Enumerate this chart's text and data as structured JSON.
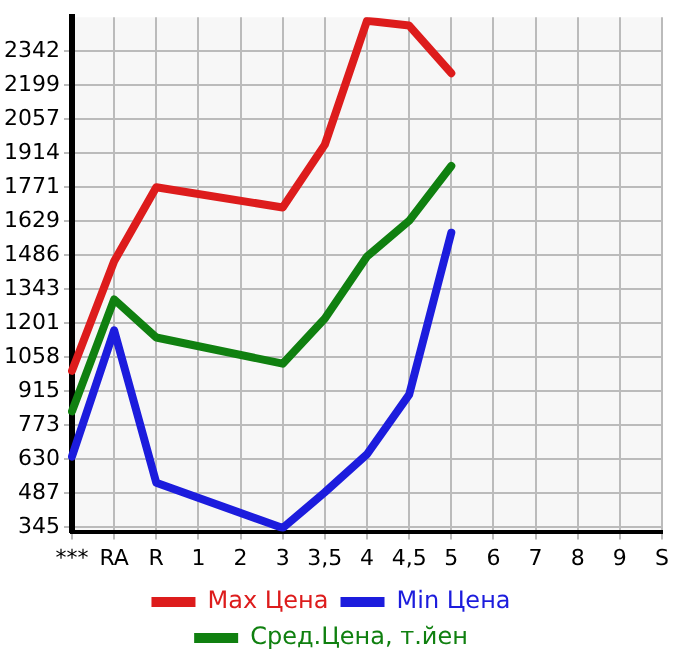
{
  "chart_data": {
    "type": "line",
    "categories": [
      "***",
      "RA",
      "R",
      "1",
      "2",
      "3",
      "3,5",
      "4",
      "4,5",
      "5",
      "6",
      "7",
      "8",
      "9",
      "S"
    ],
    "series": [
      {
        "name": "Max Цена",
        "color": "#dd1c1c",
        "values": [
          1000,
          1460,
          1771,
          null,
          null,
          1686,
          1950,
          2470,
          2450,
          2250,
          null,
          null,
          null,
          null,
          null
        ]
      },
      {
        "name": "Min Цена",
        "color": "#1c1cdd",
        "values": [
          640,
          1170,
          530,
          null,
          null,
          340,
          490,
          650,
          900,
          1580,
          null,
          null,
          null,
          null,
          null
        ]
      },
      {
        "name": "Сред.Цена, т.йен",
        "color": "#108010",
        "values": [
          830,
          1300,
          1140,
          null,
          null,
          1030,
          1220,
          1480,
          1630,
          1860,
          null,
          null,
          null,
          null,
          null
        ]
      }
    ],
    "ylim": [
      325,
      2485
    ],
    "yticks": [
      345,
      487,
      630,
      773,
      915,
      1058,
      1201,
      1343,
      1486,
      1629,
      1771,
      1914,
      2057,
      2199,
      2342
    ],
    "grid": true,
    "legend": "bottom",
    "marker": "none",
    "line_style": "solid"
  }
}
